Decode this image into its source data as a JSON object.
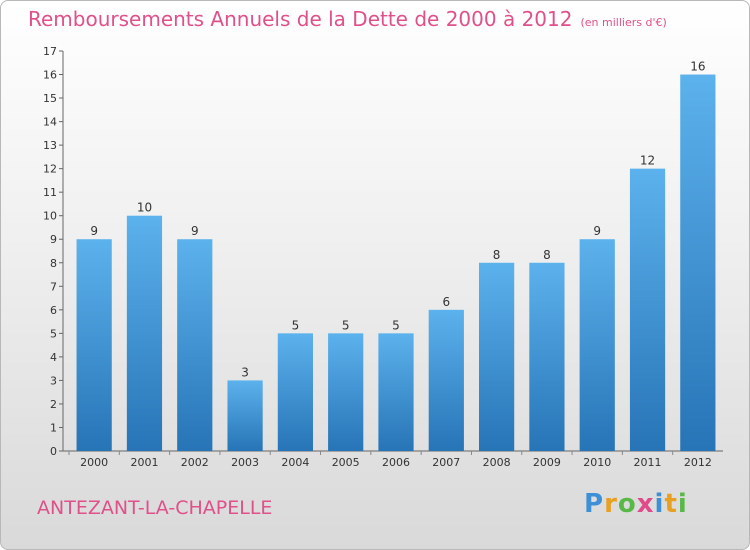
{
  "header": {
    "title": "Remboursements Annuels de la Dette de 2000 à 2012",
    "unit": "(en milliers d'€)"
  },
  "footer": {
    "commune": "ANTEZANT-LA-CHAPELLE",
    "logo_letters": [
      "P",
      "r",
      "o",
      "x",
      "i",
      "t",
      "i"
    ],
    "logo_colors": [
      "#3d8fd6",
      "#e8a020",
      "#58b848",
      "#e04a8a",
      "#3d8fd6",
      "#e8a020",
      "#58b848"
    ]
  },
  "chart_data": {
    "type": "bar",
    "title": "Remboursements Annuels de la Dette de 2000 à 2012",
    "ylabel": "en milliers d'€",
    "xlabel": "",
    "categories": [
      "2000",
      "2001",
      "2002",
      "2003",
      "2004",
      "2005",
      "2006",
      "2007",
      "2008",
      "2009",
      "2010",
      "2011",
      "2012"
    ],
    "values": [
      9,
      10,
      9,
      3,
      5,
      5,
      5,
      6,
      8,
      8,
      9,
      12,
      16
    ],
    "ylim": [
      0,
      17
    ],
    "yticks": [
      0,
      1,
      2,
      3,
      4,
      5,
      6,
      7,
      8,
      9,
      10,
      11,
      12,
      13,
      14,
      15,
      16,
      17
    ],
    "grid": false,
    "bar_color_top": "#5cb2ec",
    "bar_color_bottom": "#2774b6"
  }
}
